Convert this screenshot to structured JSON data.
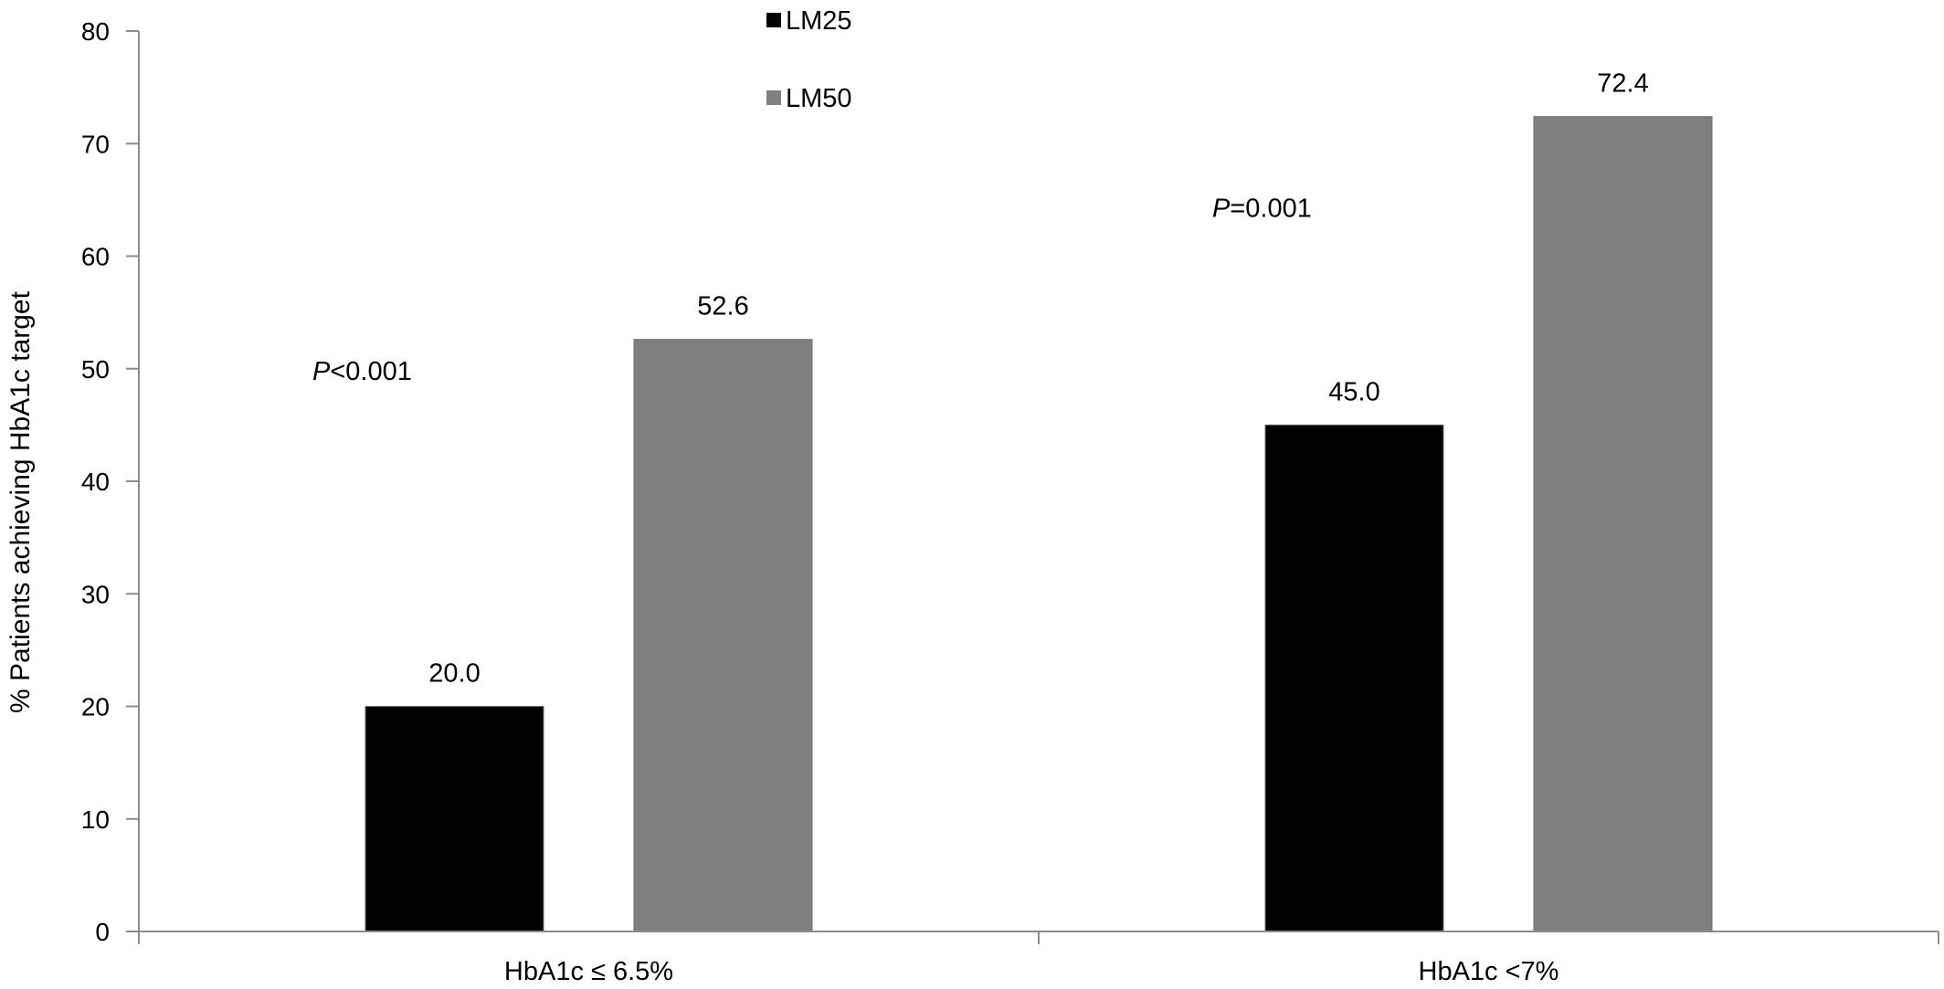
{
  "chart_data": {
    "type": "bar",
    "title": "",
    "xlabel": "",
    "ylabel": "% Patients achieving HbA1c target",
    "ylim": [
      0,
      80
    ],
    "yticks": [
      0,
      10,
      20,
      30,
      40,
      50,
      60,
      70,
      80
    ],
    "grid": false,
    "legend_position": "top-center",
    "categories": [
      "HbA1c ≤ 6.5%",
      "HbA1c <7%"
    ],
    "series": [
      {
        "name": "LM25",
        "color": "#000000",
        "values": [
          20.0,
          45.0
        ],
        "labels": [
          "20.0",
          "45.0"
        ]
      },
      {
        "name": "LM50",
        "color": "#808080",
        "values": [
          52.6,
          72.4
        ],
        "labels": [
          "52.6",
          "72.4"
        ]
      }
    ],
    "annotations": [
      {
        "category": "HbA1c ≤ 6.5%",
        "prefix": "P",
        "text": "<0.001",
        "y": 49
      },
      {
        "category": "HbA1c <7%",
        "prefix": "P",
        "text": "=0.001",
        "y": 63.5
      }
    ]
  }
}
